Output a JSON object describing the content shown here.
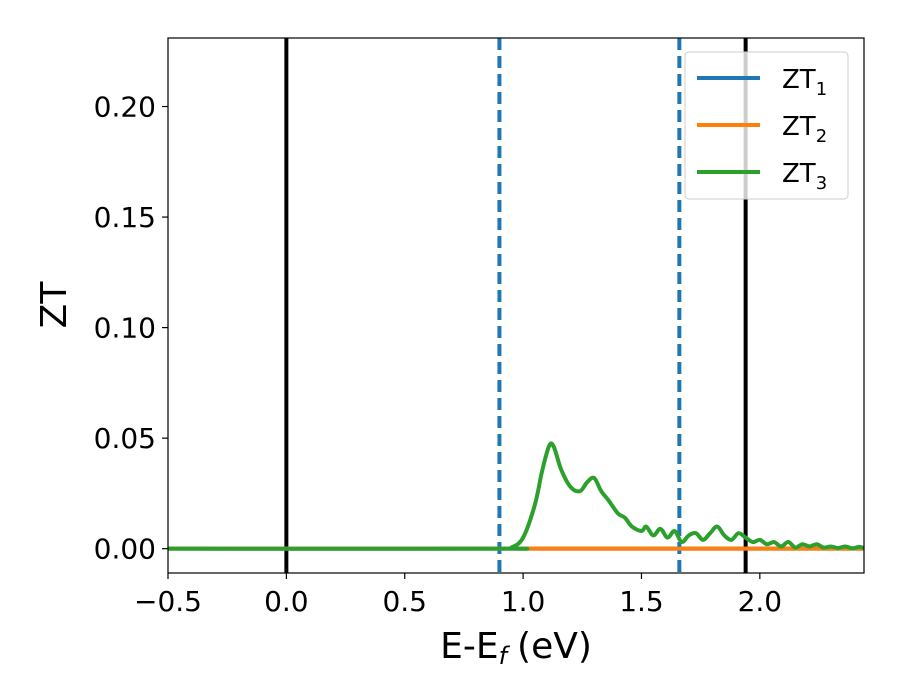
{
  "chart_data": {
    "type": "line",
    "xlabel": "E-E",
    "xlabel_sub": "f",
    "xlabel_unit": "(eV)",
    "ylabel": "ZT",
    "xlim": [
      -0.5,
      2.44
    ],
    "ylim": [
      -0.011,
      0.231
    ],
    "x_ticks": [
      -0.5,
      0.0,
      0.5,
      1.0,
      1.5,
      2.0
    ],
    "x_tick_labels": [
      "−0.5",
      "0.0",
      "0.5",
      "1.0",
      "1.5",
      "2.0"
    ],
    "y_ticks": [
      0.0,
      0.05,
      0.1,
      0.15,
      0.2
    ],
    "y_tick_labels": [
      "0.00",
      "0.05",
      "0.10",
      "0.15",
      "0.20"
    ],
    "grid": false,
    "legend_position": "top-right",
    "vertical_lines": [
      {
        "x": 0.0,
        "style": "solid",
        "color": "#000000"
      },
      {
        "x": 0.9,
        "style": "dashed",
        "color": "#1f77b4"
      },
      {
        "x": 1.66,
        "style": "dashed",
        "color": "#1f77b4"
      },
      {
        "x": 1.94,
        "style": "solid",
        "color": "#000000"
      }
    ],
    "series": [
      {
        "name": "ZT",
        "name_sub": "1",
        "color": "#1f77b4",
        "x": [
          -0.5,
          2.44
        ],
        "y": [
          0.0,
          0.0
        ]
      },
      {
        "name": "ZT",
        "name_sub": "2",
        "color": "#ff7f0e",
        "x": [
          -0.5,
          2.44
        ],
        "y": [
          0.0,
          0.0
        ]
      },
      {
        "name": "ZT",
        "name_sub": "3",
        "color": "#2ca02c",
        "x": [
          -0.5,
          0.9,
          0.95,
          1.0,
          1.05,
          1.08,
          1.11,
          1.13,
          1.16,
          1.2,
          1.24,
          1.27,
          1.3,
          1.33,
          1.36,
          1.4,
          1.43,
          1.46,
          1.5,
          1.52,
          1.55,
          1.58,
          1.61,
          1.64,
          1.67,
          1.7,
          1.73,
          1.76,
          1.79,
          1.82,
          1.85,
          1.88,
          1.91,
          1.94,
          1.97,
          2.0,
          2.03,
          2.06,
          2.09,
          2.12,
          2.15,
          2.18,
          2.21,
          2.24,
          2.27,
          2.3,
          2.33,
          2.36,
          2.39,
          2.42,
          2.44
        ],
        "y": [
          0.0,
          0.0,
          0.0005,
          0.005,
          0.02,
          0.035,
          0.0465,
          0.046,
          0.036,
          0.028,
          0.026,
          0.03,
          0.032,
          0.026,
          0.022,
          0.016,
          0.014,
          0.01,
          0.008,
          0.01,
          0.006,
          0.009,
          0.005,
          0.008,
          0.003,
          0.006,
          0.007,
          0.004,
          0.007,
          0.01,
          0.006,
          0.004,
          0.007,
          0.005,
          0.003,
          0.004,
          0.002,
          0.003,
          0.001,
          0.003,
          0.0005,
          0.002,
          0.001,
          0.002,
          0.0005,
          0.001,
          0.0003,
          0.001,
          0.0002,
          0.0008,
          0.0003
        ]
      }
    ]
  }
}
